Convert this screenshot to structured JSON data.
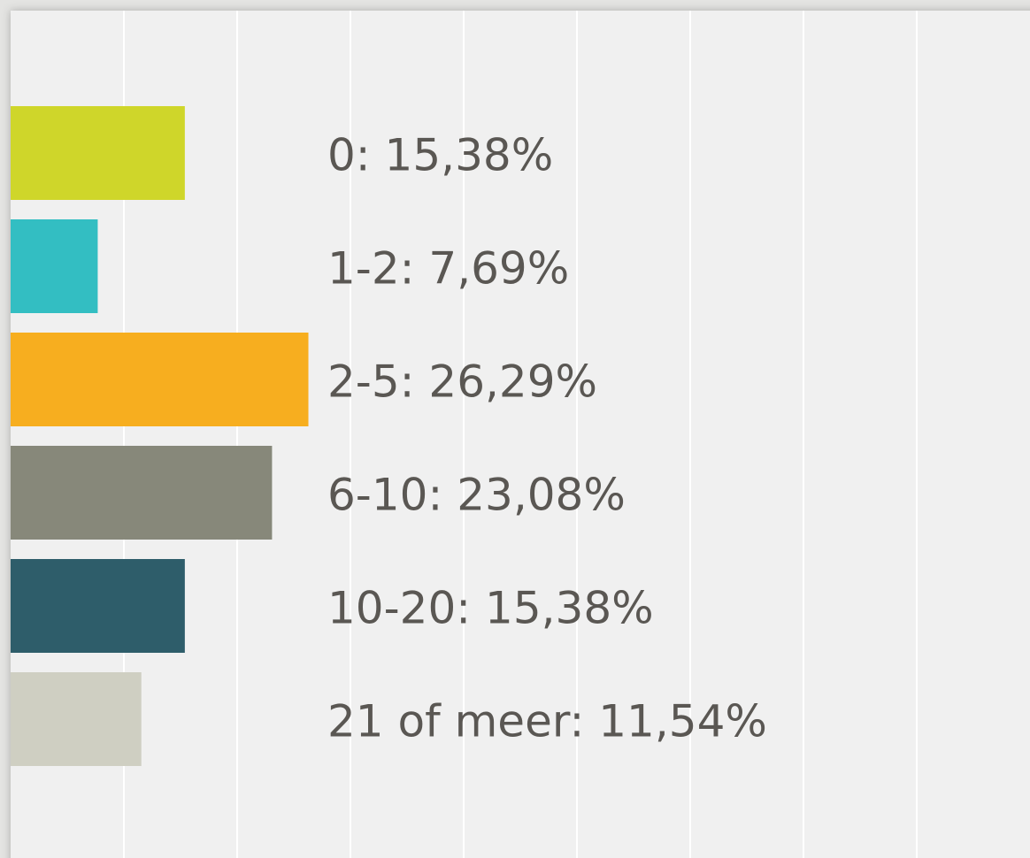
{
  "chart_data": {
    "type": "bar",
    "orientation": "horizontal",
    "values": [
      15.38,
      7.69,
      26.29,
      23.08,
      15.38,
      11.54
    ],
    "value_labels": [
      "0: 15,38%",
      "1-2: 7,69%",
      "2-5: 26,29%",
      "6-10: 23,08%",
      "10-20: 15,38%",
      "21 of meer: 11,54%"
    ],
    "colors": [
      "#cfd62a",
      "#33bec2",
      "#f7ae1f",
      "#87887a",
      "#2e5d6a",
      "#cfcfc2"
    ],
    "xlim": [
      0,
      90
    ],
    "xticks": [
      0,
      10,
      20,
      30,
      40,
      50,
      60,
      70,
      80
    ],
    "grid": true
  }
}
